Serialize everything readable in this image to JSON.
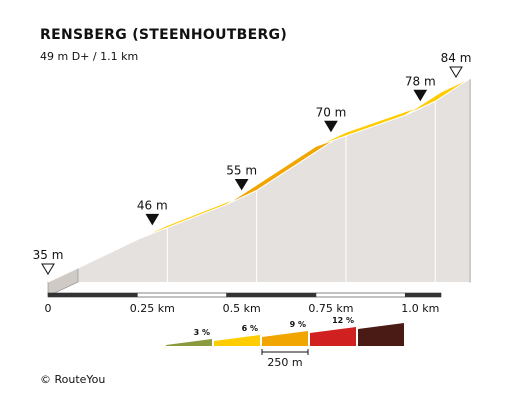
{
  "title": "RENSBERG (STEENHOUTBERG)",
  "subtitle": "49 m D+ / 1.1 km",
  "copyright": "© RouteYou",
  "chart_data": {
    "type": "area",
    "title": "RENSBERG (STEENHOUTBERG)",
    "subtitle": "49 m D+ / 1.1 km",
    "x_unit": "km",
    "x_range": [
      0,
      1.1
    ],
    "y_unit": "m",
    "segments": [
      {
        "x0": 0.0,
        "x1": 0.25,
        "y0": 35,
        "y1": 46,
        "color": "#ffcc00"
      },
      {
        "x0": 0.25,
        "x1": 0.5,
        "y0": 46,
        "y1": 55,
        "color": "#ffcc00"
      },
      {
        "x0": 0.5,
        "x1": 0.75,
        "y0": 55,
        "y1": 70,
        "color": "#f0a500"
      },
      {
        "x0": 0.75,
        "x1": 1.0,
        "y0": 70,
        "y1": 78,
        "color": "#ffcc00"
      },
      {
        "x0": 1.0,
        "x1": 1.1,
        "y0": 78,
        "y1": 84,
        "color": "#ffcc00"
      }
    ],
    "elevation_markers": [
      {
        "x": 0.0,
        "label": "35 m",
        "style": "open"
      },
      {
        "x": 0.25,
        "label": "46 m",
        "style": "filled"
      },
      {
        "x": 0.5,
        "label": "55 m",
        "style": "filled"
      },
      {
        "x": 0.75,
        "label": "70 m",
        "style": "filled"
      },
      {
        "x": 1.0,
        "label": "78 m",
        "style": "filled"
      },
      {
        "x": 1.1,
        "label": "84 m",
        "style": "open"
      }
    ],
    "x_ticks": [
      {
        "x": 0,
        "label": "0"
      },
      {
        "x": 0.25,
        "label": "0.25 km"
      },
      {
        "x": 0.5,
        "label": "0.5 km"
      },
      {
        "x": 0.75,
        "label": "0.75 km"
      },
      {
        "x": 1.0,
        "label": "1.0 km"
      }
    ],
    "gradient_legend": {
      "scale_label": "250 m",
      "items": [
        {
          "label": "3 %",
          "color": "#8b9a3c"
        },
        {
          "label": "6 %",
          "color": "#ffcc00"
        },
        {
          "label": "9 %",
          "color": "#f0a500"
        },
        {
          "label": "12 %",
          "color": "#d02020"
        },
        {
          "label": "",
          "color": "#4a1a14"
        }
      ]
    }
  }
}
